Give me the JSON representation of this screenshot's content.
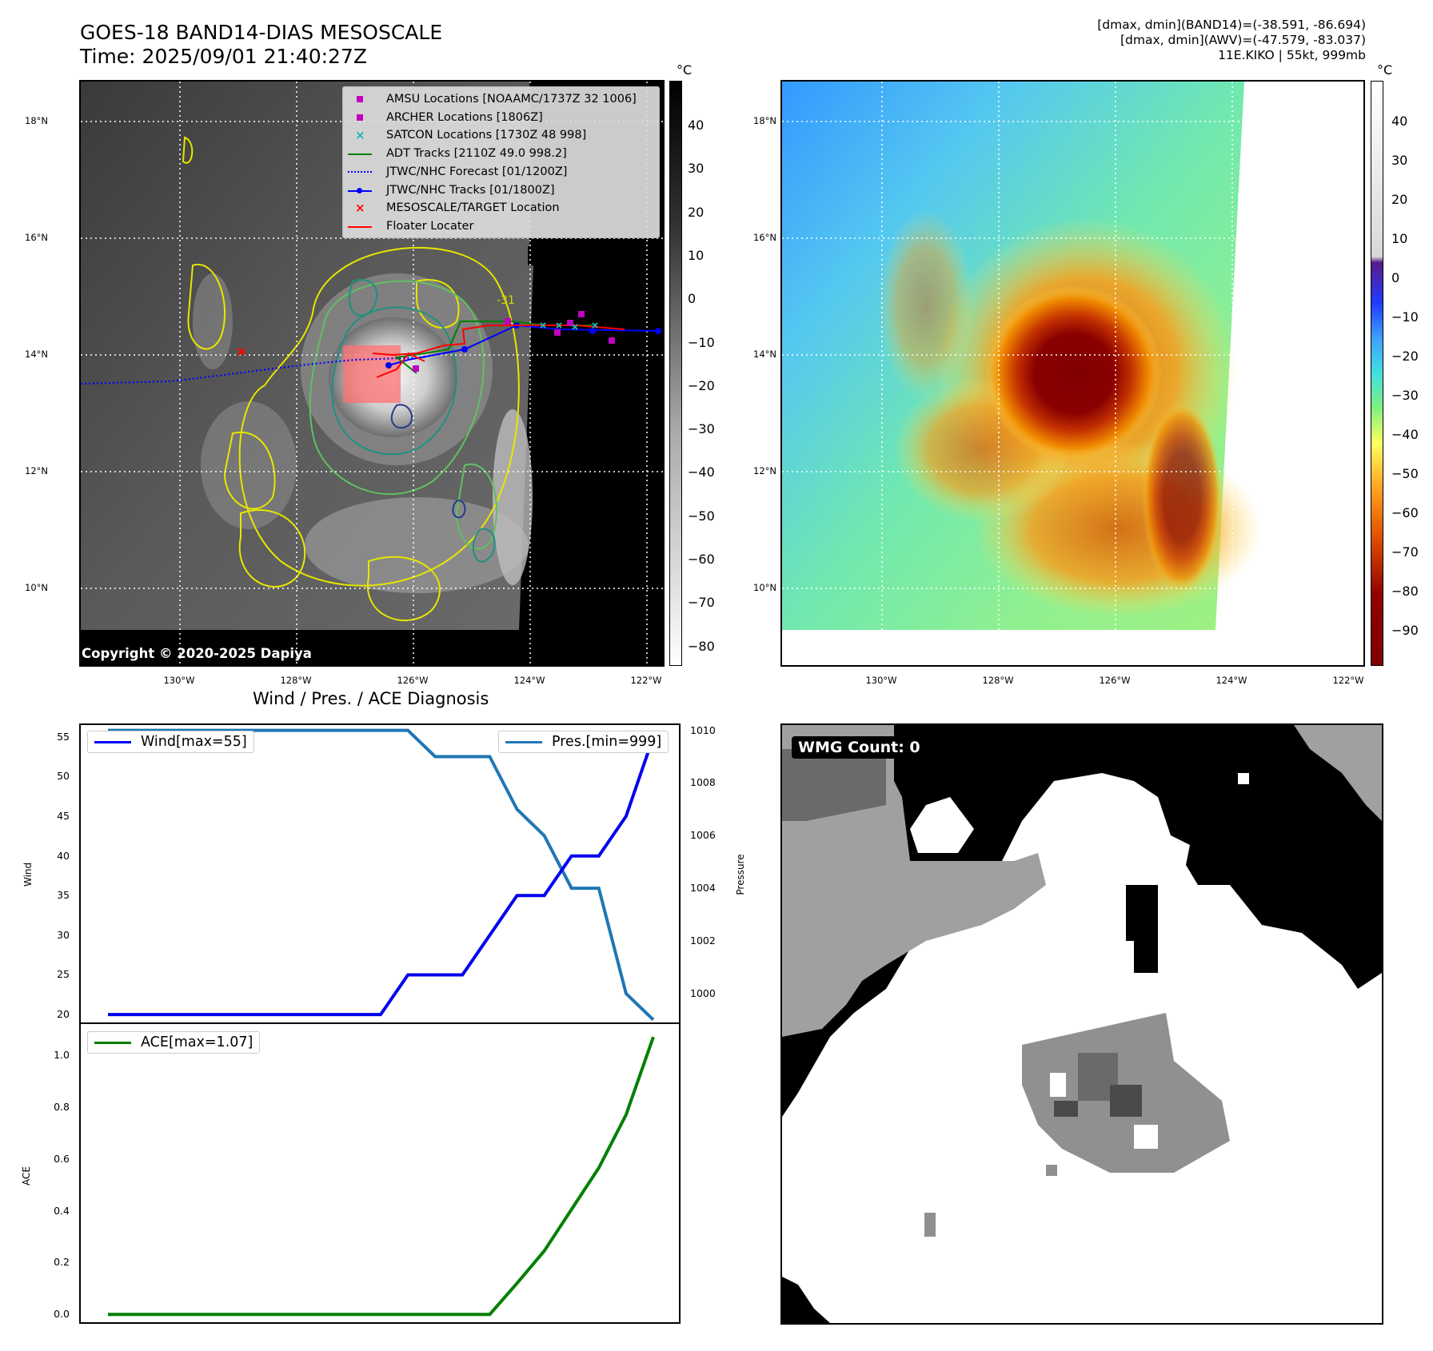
{
  "header": {
    "title_line1": "GOES-18 BAND14-DIAS MESOSCALE",
    "title_line2": "Time: 2025/09/01 21:40:27Z",
    "info_line1": "[dmax, dmin](BAND14)=(-38.591, -86.694)",
    "info_line2": "[dmax, dmin](AWV)=(-47.579, -83.037)",
    "info_line3": "11E.KIKO | 55kt, 999mb"
  },
  "map": {
    "lat_labels": [
      "18°N",
      "16°N",
      "14°N",
      "12°N",
      "10°N"
    ],
    "lon_labels": [
      "130°W",
      "128°W",
      "126°W",
      "124°W",
      "122°W"
    ],
    "contour_label": "-31",
    "copyright": "Copyright © 2020-2025 Dapiya"
  },
  "legend": {
    "items": [
      {
        "label": "AMSU Locations [NOAAMC/1737Z 32 1006]",
        "color": "#c000c0"
      },
      {
        "label": "ARCHER Locations [1806Z]",
        "color": "#c000c0"
      },
      {
        "label": "SATCON Locations [1730Z 48 998]",
        "color": "#20b0b0"
      },
      {
        "label": "ADT Tracks [2110Z 49.0 998.2]",
        "color": "#008000"
      },
      {
        "label": "JTWC/NHC Forecast [01/1200Z]",
        "color": "#0000ff"
      },
      {
        "label": "JTWC/NHC Tracks [01/1800Z]",
        "color": "#0000ff"
      },
      {
        "label": "MESOSCALE/TARGET Location",
        "color": "#ff0000"
      },
      {
        "label": "Floater Locater",
        "color": "#ff0000"
      }
    ]
  },
  "colorbar_gray": {
    "unit": "°C",
    "labels": [
      "40",
      "30",
      "20",
      "10",
      "0",
      "−10",
      "−20",
      "−30",
      "−40",
      "−50",
      "−60",
      "−70",
      "−80"
    ]
  },
  "colorbar_color": {
    "unit": "°C",
    "labels": [
      "40",
      "30",
      "20",
      "10",
      "0",
      "−10",
      "−20",
      "−30",
      "−40",
      "−50",
      "−60",
      "−70",
      "−80",
      "−90"
    ]
  },
  "wmg": {
    "label": "WMG Count: 0"
  },
  "chart_data": [
    {
      "type": "line",
      "title": "Wind / Pres. / ACE Diagnosis",
      "ylabel": "Wind",
      "ylim": [
        19,
        56.5
      ],
      "yticks": [
        "55",
        "50",
        "45",
        "40",
        "35",
        "30",
        "25",
        "20"
      ],
      "series": [
        {
          "name": "Wind[max=55]",
          "color": "#0000ee",
          "x": [
            0,
            1,
            2,
            3,
            4,
            5,
            6,
            7,
            8,
            9,
            10,
            11,
            12,
            13,
            14,
            15,
            16,
            17,
            18,
            19,
            20
          ],
          "values": [
            20,
            20,
            20,
            20,
            20,
            20,
            20,
            20,
            20,
            20,
            20,
            25,
            25,
            25,
            30,
            35,
            35,
            40,
            40,
            45,
            55
          ]
        }
      ]
    },
    {
      "type": "line",
      "ylabel": "Pressure",
      "ylim": [
        998.9,
        1010.2
      ],
      "yticks": [
        "1010",
        "1008",
        "1006",
        "1004",
        "1002",
        "1000"
      ],
      "series": [
        {
          "name": "Pres.[min=999]",
          "color": "#1f77b4",
          "x": [
            0,
            1,
            2,
            3,
            4,
            5,
            6,
            7,
            8,
            9,
            10,
            11,
            12,
            13,
            14,
            15,
            16,
            17,
            18,
            19,
            20
          ],
          "values": [
            1010,
            1010,
            1010,
            1010,
            1010,
            1010,
            1010,
            1010,
            1010,
            1010,
            1010,
            1010,
            1009,
            1009,
            1009,
            1007,
            1006,
            1004,
            1004,
            1000,
            999
          ]
        }
      ]
    },
    {
      "type": "line",
      "ylabel": "ACE",
      "ylim": [
        -0.03,
        1.12
      ],
      "yticks": [
        "1.0",
        "0.8",
        "0.6",
        "0.4",
        "0.2",
        "0.0"
      ],
      "series": [
        {
          "name": "ACE[max=1.07]",
          "color": "#008000",
          "x": [
            0,
            1,
            2,
            3,
            4,
            5,
            6,
            7,
            8,
            9,
            10,
            11,
            12,
            13,
            14,
            15,
            16,
            17,
            18,
            19,
            20
          ],
          "values": [
            0,
            0,
            0,
            0,
            0,
            0,
            0,
            0,
            0,
            0,
            0,
            0,
            0,
            0,
            0,
            0.12,
            0.245,
            0.405,
            0.565,
            0.77,
            1.07
          ]
        }
      ]
    }
  ]
}
